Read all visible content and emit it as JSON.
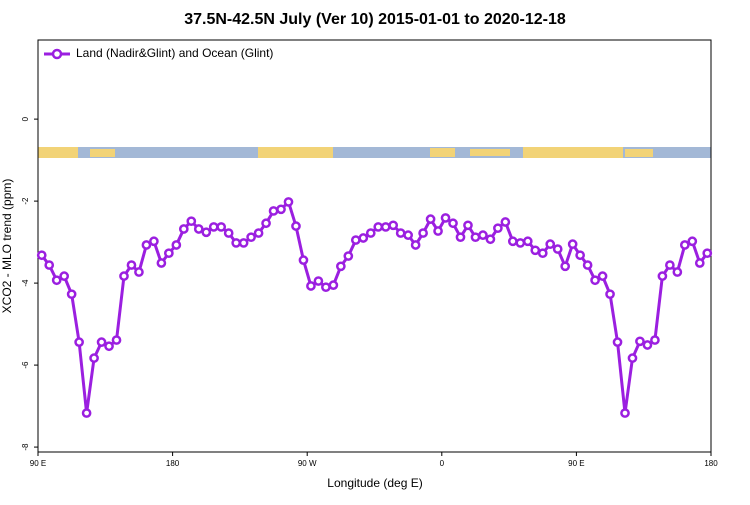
{
  "chart_data": {
    "type": "line",
    "title": "37.5N-42.5N July (Ver 10)   2015-01-01 to 2020-12-18",
    "x_label": "Longitude (deg E)",
    "y_label": "XCO2 - MLO trend (ppm)",
    "x": [
      92.5,
      97.5,
      102.5,
      107.5,
      112.5,
      117.5,
      122.5,
      127.5,
      132.5,
      137.5,
      142.5,
      147.5,
      152.5,
      157.5,
      162.5,
      167.5,
      172.5,
      177.5,
      182.5,
      187.5,
      192.5,
      197.5,
      202.5,
      207.5,
      212.5,
      217.5,
      222.5,
      227.5,
      232.5,
      237.5,
      242.5,
      247.5,
      252.5,
      257.5,
      262.5,
      267.5,
      272.5,
      277.5,
      282.5,
      287.5,
      292.5,
      297.5,
      302.5,
      307.5,
      312.5,
      317.5,
      322.5,
      327.5,
      332.5,
      337.5,
      342.5,
      347.5,
      352.5,
      357.5,
      362.5,
      367.5,
      372.5,
      377.5,
      382.5,
      387.5,
      392.5,
      397.5,
      402.5,
      407.5,
      412.5,
      417.5,
      422.5,
      427.5,
      432.5,
      437.5,
      442.5,
      447.5,
      452.5,
      457.5,
      462.5,
      467.5,
      472.5,
      477.5,
      482.5,
      487.5,
      492.5,
      497.5,
      502.5,
      507.5,
      512.5,
      517.5,
      522.5,
      527.5,
      532.5,
      537.5
    ],
    "series": [
      {
        "name": "Land (Nadir&Glint) and Ocean (Glint)",
        "color": "#9b1fe0",
        "values": [
          -3.32,
          -3.56,
          -3.93,
          -3.83,
          -4.27,
          -5.44,
          -7.17,
          -5.83,
          -5.44,
          -5.54,
          -5.39,
          -3.83,
          -3.56,
          -3.73,
          -3.07,
          -2.98,
          -3.51,
          -3.27,
          -3.07,
          -2.68,
          -2.49,
          -2.68,
          -2.76,
          -2.63,
          -2.63,
          -2.78,
          -3.02,
          -3.02,
          -2.88,
          -2.78,
          -2.54,
          -2.24,
          -2.2,
          -2.02,
          -2.61,
          -3.44,
          -4.07,
          -3.95,
          -4.1,
          -4.05,
          -3.59,
          -3.34,
          -2.95,
          -2.9,
          -2.78,
          -2.63,
          -2.63,
          -2.59,
          -2.78,
          -2.83,
          -3.07,
          -2.78,
          -2.44,
          -2.73,
          -2.41,
          -2.54,
          -2.88,
          -2.59,
          -2.88,
          -2.83,
          -2.93,
          -2.66,
          -2.51,
          -2.98,
          -3.02,
          -2.98,
          -3.2,
          -3.27,
          -3.05,
          -3.17,
          -3.59,
          -3.05,
          -3.32,
          -3.56,
          -3.93,
          -3.83,
          -4.27,
          -5.44,
          -7.17,
          -5.83,
          -5.42,
          -5.51,
          -5.39,
          -3.83,
          -3.56,
          -3.73,
          -3.07,
          -2.98,
          -3.51,
          -3.27
        ]
      }
    ],
    "xlim": [
      90,
      540
    ],
    "xticks": [
      {
        "value": 90,
        "label": "90 E"
      },
      180,
      {
        "value": 270,
        "label": "90 W"
      },
      {
        "value": 360,
        "label": "0"
      },
      {
        "value": 450,
        "label": "90 E"
      },
      {
        "value": 540,
        "label": "180"
      }
    ],
    "ylim": [
      -8.12,
      1.93
    ],
    "yticks": [
      0,
      -2,
      -4,
      -6,
      -8
    ],
    "legend": "top-left"
  }
}
